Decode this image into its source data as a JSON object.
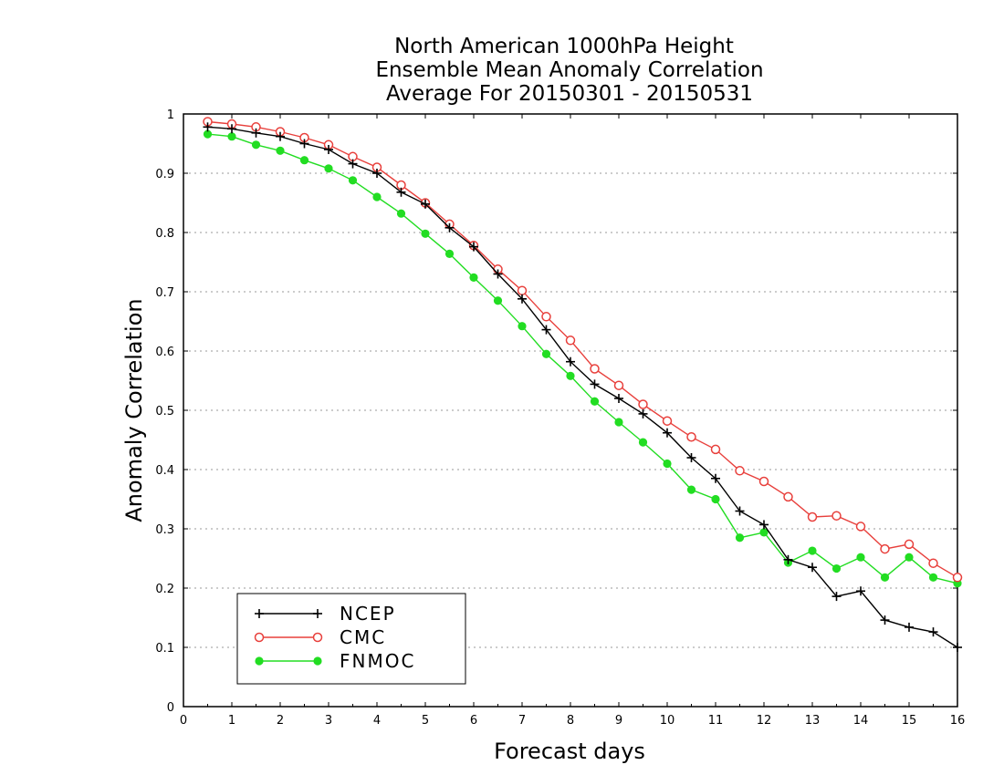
{
  "chart_data": {
    "type": "line",
    "title": [
      "North American 1000hPa Height",
      "Ensemble Mean Anomaly Correlation",
      "Average For 20150301 - 20150531"
    ],
    "xlabel": "Forecast days",
    "ylabel": "Anomaly Correlation",
    "xlim": [
      0,
      16
    ],
    "ylim": [
      0,
      1
    ],
    "xticks": [
      0,
      1,
      2,
      3,
      4,
      5,
      6,
      7,
      8,
      9,
      10,
      11,
      12,
      13,
      14,
      15,
      16
    ],
    "yticks": [
      0,
      0.1,
      0.2,
      0.3,
      0.4,
      0.5,
      0.6,
      0.7,
      0.8,
      0.9,
      1
    ],
    "ytick_labels": [
      "0",
      "0.1",
      "0.2",
      "0.3",
      "0.4",
      "0.5",
      "0.6",
      "0.7",
      "0.8",
      "0.9",
      "1"
    ],
    "grid": "horizontal dotted",
    "legend_position": "bottom-left",
    "x": [
      0.5,
      1,
      1.5,
      2,
      2.5,
      3,
      3.5,
      4,
      4.5,
      5,
      5.5,
      6,
      6.5,
      7,
      7.5,
      8,
      8.5,
      9,
      9.5,
      10,
      10.5,
      11,
      11.5,
      12,
      12.5,
      13,
      13.5,
      14,
      14.5,
      15,
      15.5,
      16
    ],
    "series": [
      {
        "name": "NCEP",
        "color": "#000000",
        "marker": "plus",
        "values": [
          0.978,
          0.975,
          0.968,
          0.962,
          0.95,
          0.94,
          0.916,
          0.9,
          0.868,
          0.848,
          0.808,
          0.776,
          0.73,
          0.688,
          0.636,
          0.582,
          0.544,
          0.52,
          0.494,
          0.462,
          0.42,
          0.385,
          0.33,
          0.307,
          0.248,
          0.235,
          0.186,
          0.195,
          0.146,
          0.134,
          0.126,
          0.1
        ]
      },
      {
        "name": "CMC",
        "color": "#e8403c",
        "marker": "open-circle",
        "values": [
          0.987,
          0.983,
          0.978,
          0.97,
          0.96,
          0.948,
          0.928,
          0.91,
          0.88,
          0.85,
          0.814,
          0.778,
          0.738,
          0.702,
          0.658,
          0.618,
          0.57,
          0.542,
          0.51,
          0.482,
          0.455,
          0.434,
          0.398,
          0.38,
          0.354,
          0.32,
          0.322,
          0.304,
          0.266,
          0.274,
          0.242,
          0.218
        ]
      },
      {
        "name": "FNMOC",
        "color": "#22dd22",
        "marker": "filled-circle",
        "values": [
          0.966,
          0.962,
          0.948,
          0.938,
          0.922,
          0.908,
          0.888,
          0.86,
          0.832,
          0.798,
          0.764,
          0.724,
          0.685,
          0.642,
          0.595,
          0.558,
          0.515,
          0.48,
          0.446,
          0.41,
          0.366,
          0.35,
          0.285,
          0.294,
          0.243,
          0.263,
          0.233,
          0.252,
          0.218,
          0.252,
          0.218,
          0.208
        ]
      }
    ]
  }
}
